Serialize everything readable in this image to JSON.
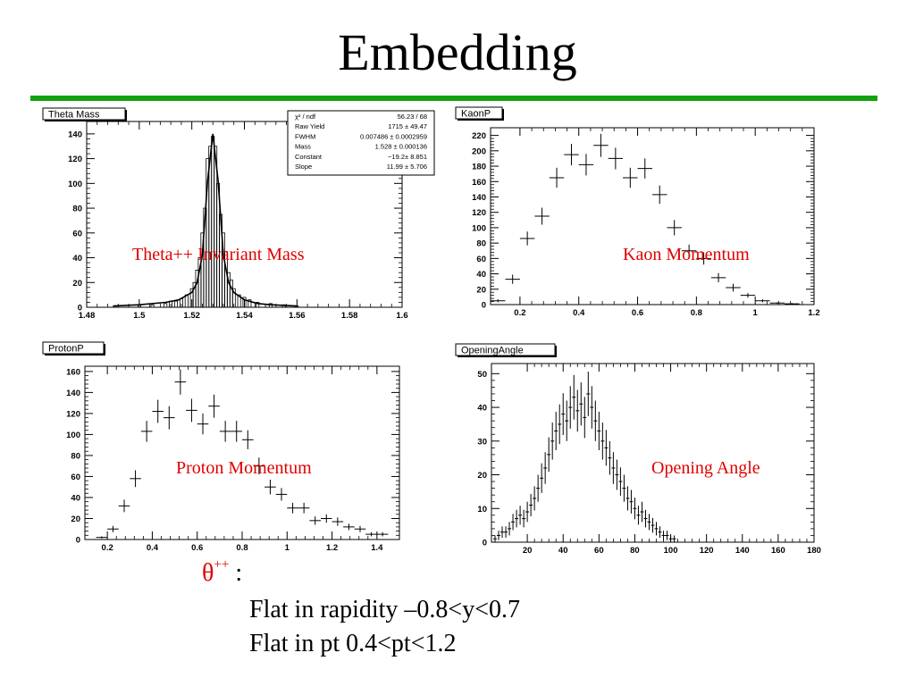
{
  "slide": {
    "title": "Embedding",
    "theta_symbol": "θ",
    "theta_sup": "++",
    "theta_colon": " :",
    "line1": "Flat in rapidity –0.8<y<0.7",
    "line2": "Flat in pt 0.4<pt<1.2",
    "rule_color": "#13a10e",
    "caption_color": "#e00000"
  },
  "captions": {
    "theta": "Theta++ Invariant Mass",
    "kaon": "Kaon Momentum",
    "proton": "Proton Momentum",
    "opening": "Opening Angle"
  },
  "chart_data": [
    {
      "id": "theta",
      "type": "line",
      "title": "Theta Mass",
      "xlim": [
        1.48,
        1.6
      ],
      "ylim": [
        0,
        150
      ],
      "xticks": [
        1.48,
        1.5,
        1.52,
        1.54,
        1.56,
        1.58,
        1.6
      ],
      "xtick_labels": [
        "1.48",
        "1.5",
        "1.52",
        "1.54",
        "1.56",
        "1.58",
        "1.6"
      ],
      "yticks": [
        0,
        20,
        40,
        60,
        80,
        100,
        120,
        140
      ],
      "ytick_labels": [
        "0",
        "20",
        "40",
        "60",
        "80",
        "100",
        "120",
        "140"
      ],
      "stats": [
        {
          "label": "χ² / ndf",
          "value": "56.23 / 68"
        },
        {
          "label": "Raw Yield",
          "value": "1715 ± 49.47"
        },
        {
          "label": "FWHM",
          "value": "0.007486 ± 0.0002959"
        },
        {
          "label": "Mass",
          "value": "1.528 ± 0.000136"
        },
        {
          "label": "Constant",
          "value": "−19.2± 8.851"
        },
        {
          "label": "Slope",
          "value": "11.99 ± 5.706"
        }
      ],
      "histogram": {
        "x": [
          1.5,
          1.505,
          1.51,
          1.512,
          1.514,
          1.516,
          1.518,
          1.52,
          1.521,
          1.522,
          1.523,
          1.524,
          1.525,
          1.526,
          1.527,
          1.528,
          1.529,
          1.53,
          1.531,
          1.532,
          1.533,
          1.534,
          1.535,
          1.536,
          1.538,
          1.54,
          1.542,
          1.545,
          1.55,
          1.555,
          1.56
        ],
        "values": [
          2,
          2,
          3,
          5,
          5,
          7,
          10,
          15,
          20,
          30,
          40,
          60,
          80,
          120,
          130,
          138,
          130,
          100,
          75,
          60,
          45,
          28,
          22,
          15,
          10,
          8,
          6,
          4,
          3,
          2,
          1
        ]
      },
      "fit": {
        "x": [
          1.49,
          1.5,
          1.51,
          1.515,
          1.52,
          1.522,
          1.524,
          1.526,
          1.528,
          1.53,
          1.532,
          1.534,
          1.536,
          1.54,
          1.545,
          1.55,
          1.56
        ],
        "values": [
          1,
          2,
          4,
          6,
          12,
          20,
          42,
          102,
          140,
          102,
          42,
          20,
          12,
          6,
          3,
          2,
          1
        ]
      }
    },
    {
      "id": "kaon",
      "type": "scatter",
      "title": "KaonP",
      "xlim": [
        0.1,
        1.2
      ],
      "ylim": [
        0,
        230
      ],
      "xticks": [
        0.2,
        0.4,
        0.6,
        0.8,
        1,
        1.2
      ],
      "xtick_labels": [
        "0.2",
        "0.4",
        "0.6",
        "0.8",
        "1",
        "1.2"
      ],
      "yticks": [
        0,
        20,
        40,
        60,
        80,
        100,
        120,
        140,
        160,
        180,
        200,
        220
      ],
      "ytick_labels": [
        "0",
        "20",
        "40",
        "60",
        "80",
        "100",
        "120",
        "140",
        "160",
        "180",
        "200",
        "220"
      ],
      "x": [
        0.125,
        0.175,
        0.225,
        0.275,
        0.325,
        0.375,
        0.425,
        0.475,
        0.525,
        0.575,
        0.625,
        0.675,
        0.725,
        0.775,
        0.825,
        0.875,
        0.925,
        0.975,
        1.025,
        1.075,
        1.125
      ],
      "y": [
        5,
        33,
        86,
        115,
        165,
        195,
        182,
        207,
        190,
        165,
        177,
        143,
        100,
        70,
        60,
        35,
        22,
        12,
        5,
        2,
        1
      ],
      "err": [
        2,
        6,
        9,
        11,
        13,
        14,
        14,
        15,
        14,
        13,
        13,
        12,
        10,
        8,
        8,
        6,
        5,
        3,
        2,
        1,
        1
      ]
    },
    {
      "id": "proton",
      "type": "scatter",
      "title": "ProtonP",
      "xlim": [
        0.1,
        1.5
      ],
      "ylim": [
        0,
        165
      ],
      "xticks": [
        0.2,
        0.4,
        0.6,
        0.8,
        1,
        1.2,
        1.4
      ],
      "xtick_labels": [
        "0.2",
        "0.4",
        "0.6",
        "0.8",
        "1",
        "1.2",
        "1.4"
      ],
      "yticks": [
        0,
        20,
        40,
        60,
        80,
        100,
        120,
        140,
        160
      ],
      "ytick_labels": [
        "0",
        "20",
        "40",
        "60",
        "80",
        "100",
        "120",
        "140",
        "160"
      ],
      "x": [
        0.175,
        0.225,
        0.275,
        0.325,
        0.375,
        0.425,
        0.475,
        0.525,
        0.575,
        0.625,
        0.675,
        0.725,
        0.775,
        0.825,
        0.875,
        0.925,
        0.975,
        1.025,
        1.075,
        1.125,
        1.175,
        1.225,
        1.275,
        1.325,
        1.375,
        1.425
      ],
      "y": [
        2,
        10,
        32,
        58,
        103,
        122,
        116,
        150,
        123,
        110,
        127,
        103,
        103,
        95,
        70,
        50,
        43,
        30,
        30,
        18,
        20,
        17,
        12,
        10,
        5,
        5
      ],
      "err": [
        1,
        3,
        6,
        8,
        10,
        11,
        11,
        12,
        11,
        10,
        11,
        10,
        10,
        9,
        8,
        7,
        6,
        5,
        5,
        4,
        4,
        4,
        3,
        3,
        2,
        2
      ]
    },
    {
      "id": "opening",
      "type": "scatter",
      "title": "OpeningAngle",
      "xlim": [
        0,
        180
      ],
      "ylim": [
        0,
        53
      ],
      "xticks": [
        20,
        40,
        60,
        80,
        100,
        120,
        140,
        160,
        180
      ],
      "xtick_labels": [
        "20",
        "40",
        "60",
        "80",
        "100",
        "120",
        "140",
        "160",
        "180"
      ],
      "yticks": [
        0,
        10,
        20,
        30,
        40,
        50
      ],
      "ytick_labels": [
        "0",
        "10",
        "20",
        "30",
        "40",
        "50"
      ],
      "x": [
        2,
        4,
        6,
        8,
        10,
        12,
        14,
        16,
        18,
        20,
        22,
        24,
        26,
        28,
        30,
        32,
        34,
        36,
        38,
        40,
        42,
        44,
        46,
        48,
        50,
        52,
        54,
        56,
        58,
        60,
        62,
        64,
        66,
        68,
        70,
        72,
        74,
        76,
        78,
        80,
        82,
        84,
        86,
        88,
        90,
        92,
        94,
        96,
        98,
        100,
        102
      ],
      "y": [
        1,
        2,
        3,
        3,
        4,
        6,
        7,
        8,
        7,
        9,
        11,
        13,
        16,
        19,
        22,
        26,
        30,
        33,
        35,
        38,
        36,
        40,
        43,
        39,
        41,
        37,
        44,
        40,
        36,
        33,
        30,
        28,
        25,
        22,
        20,
        18,
        16,
        13,
        12,
        10,
        8,
        9,
        7,
        6,
        5,
        4,
        3,
        2,
        2,
        1,
        1
      ],
      "err": [
        1,
        1.4,
        1.7,
        1.7,
        2,
        2.4,
        2.6,
        2.8,
        2.6,
        3,
        3.3,
        3.6,
        4,
        4.4,
        4.7,
        5.1,
        5.5,
        5.7,
        5.9,
        6.2,
        6,
        6.3,
        6.6,
        6.2,
        6.4,
        6.1,
        6.6,
        6.3,
        6,
        5.7,
        5.5,
        5.3,
        5,
        4.7,
        4.5,
        4.2,
        4,
        3.6,
        3.5,
        3.2,
        2.8,
        3,
        2.6,
        2.4,
        2.2,
        2,
        1.7,
        1.4,
        1.4,
        1,
        1
      ]
    }
  ]
}
